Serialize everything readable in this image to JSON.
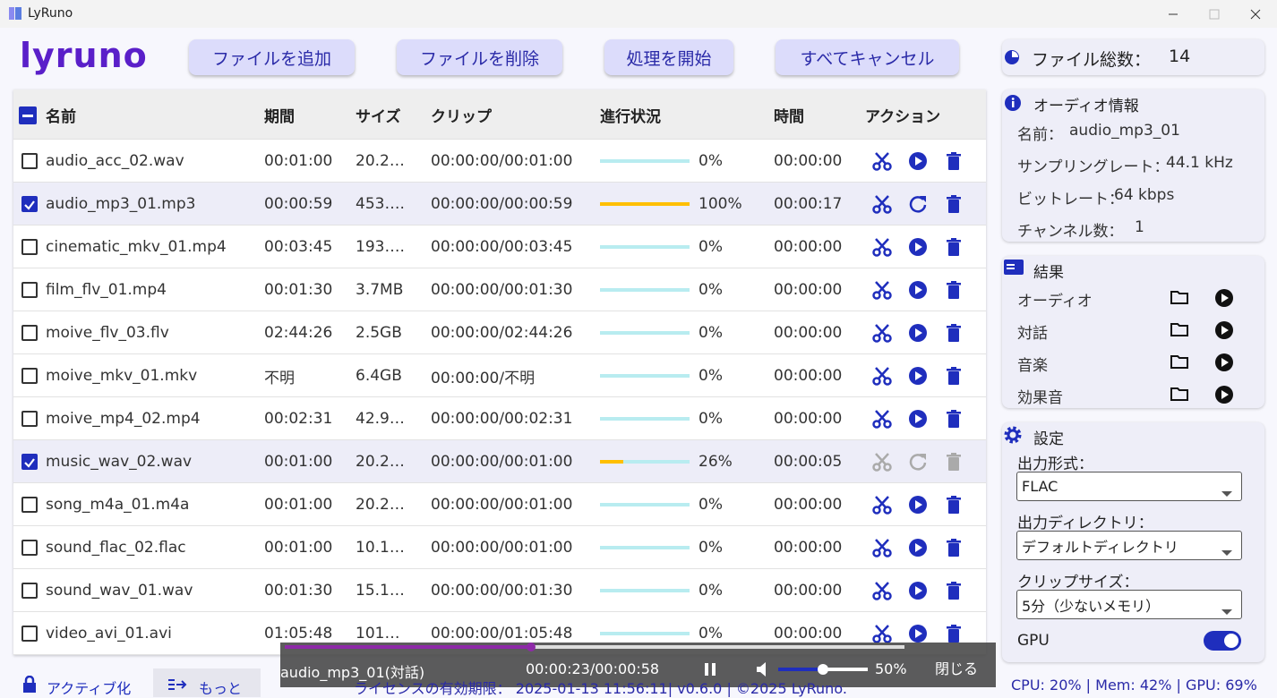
{
  "window": {
    "title": "LyRuno"
  },
  "logo": "lyruno",
  "toolbar": {
    "buttons": [
      "ファイルを追加",
      "ファイルを削除",
      "処理を開始",
      "すべてキャンセル"
    ]
  },
  "file_count": {
    "label": "ファイル総数：",
    "value": 14
  },
  "table": {
    "columns": [
      "名前",
      "期間",
      "サイズ",
      "クリップ",
      "進行状況",
      "時間",
      "アクション"
    ],
    "rows": [
      {
        "name": "audio_acc_02.wav",
        "duration": "00:01:00",
        "size": "20.2…",
        "clip": "00:00:00/00:01:00",
        "progress": 0,
        "progress_label": "0%",
        "time": "00:00:00",
        "checked": false
      },
      {
        "name": "audio_mp3_01.mp3",
        "duration": "00:00:59",
        "size": "453….",
        "clip": "00:00:00/00:00:59",
        "progress": 100,
        "progress_label": "100%",
        "time": "00:00:17",
        "checked": true
      },
      {
        "name": "cinematic_mkv_01.mp4",
        "duration": "00:03:45",
        "size": "193….",
        "clip": "00:00:00/00:03:45",
        "progress": 0,
        "progress_label": "0%",
        "time": "00:00:00",
        "checked": false
      },
      {
        "name": "film_flv_01.mp4",
        "duration": "00:01:30",
        "size": "3.7MB",
        "clip": "00:00:00/00:01:30",
        "progress": 0,
        "progress_label": "0%",
        "time": "00:00:00",
        "checked": false
      },
      {
        "name": "moive_flv_03.flv",
        "duration": "02:44:26",
        "size": "2.5GB",
        "clip": "00:00:00/02:44:26",
        "progress": 0,
        "progress_label": "0%",
        "time": "00:00:00",
        "checked": false
      },
      {
        "name": "moive_mkv_01.mkv",
        "duration": "不明",
        "size": "6.4GB",
        "clip": "00:00:00/不明",
        "progress": 0,
        "progress_label": "0%",
        "time": "00:00:00",
        "checked": false
      },
      {
        "name": "moive_mp4_02.mp4",
        "duration": "00:02:31",
        "size": "42.9…",
        "clip": "00:00:00/00:02:31",
        "progress": 0,
        "progress_label": "0%",
        "time": "00:00:00",
        "checked": false
      },
      {
        "name": "music_wav_02.wav",
        "duration": "00:01:00",
        "size": "20.2…",
        "clip": "00:00:00/00:01:00",
        "progress": 26,
        "progress_label": "26%",
        "time": "00:00:05",
        "checked": true
      },
      {
        "name": "song_m4a_01.m4a",
        "duration": "00:01:00",
        "size": "20.2…",
        "clip": "00:00:00/00:01:00",
        "progress": 0,
        "progress_label": "0%",
        "time": "00:00:00",
        "checked": false
      },
      {
        "name": "sound_flac_02.flac",
        "duration": "00:01:00",
        "size": "10.1…",
        "clip": "00:00:00/00:01:00",
        "progress": 0,
        "progress_label": "0%",
        "time": "00:00:00",
        "checked": false
      },
      {
        "name": "sound_wav_01.wav",
        "duration": "00:01:30",
        "size": "15.1…",
        "clip": "00:00:00/00:01:30",
        "progress": 0,
        "progress_label": "0%",
        "time": "00:00:00",
        "checked": false
      },
      {
        "name": "video_avi_01.avi",
        "duration": "01:05:48",
        "size": "101…",
        "clip": "00:00:00/01:05:48",
        "progress": 0,
        "progress_label": "0%",
        "time": "00:00:00",
        "checked": false
      }
    ]
  },
  "audio_info": {
    "title": "オーディオ情報",
    "items": [
      [
        "名前：",
        "audio_mp3_01"
      ],
      [
        "サンプリングレート：",
        "44.1 kHz"
      ],
      [
        "ビットレート：",
        "64 kbps"
      ],
      [
        "チャンネル数：",
        "1"
      ]
    ]
  },
  "results": {
    "title": "結果",
    "items": [
      "オーディオ",
      "対話",
      "音楽",
      "効果音"
    ]
  },
  "settings": {
    "title": "設定",
    "fields": [
      {
        "label": "出力形式：",
        "value": "FLAC"
      },
      {
        "label": "出力ディレクトリ：",
        "value": "デフォルトディレクトリ"
      },
      {
        "label": "クリップサイズ：",
        "value": "5分（少ないメモリ）"
      }
    ],
    "gpu": {
      "label": "GPU",
      "on": true
    }
  },
  "player": {
    "title": "audio_mp3_01(対話)",
    "time": "00:00:23/00:00:58",
    "volume": {
      "value": 50,
      "label": "50%"
    },
    "close": "閉じる"
  },
  "footer": {
    "activate": "アクティブ化",
    "more": "もっと",
    "license": "ライセンスの有効期限： 2025-01-13 11:56:11| v0.6.0 | ©2025 LyRuno.",
    "status": "CPU: 20% | Mem: 42% | GPU: 69%"
  }
}
